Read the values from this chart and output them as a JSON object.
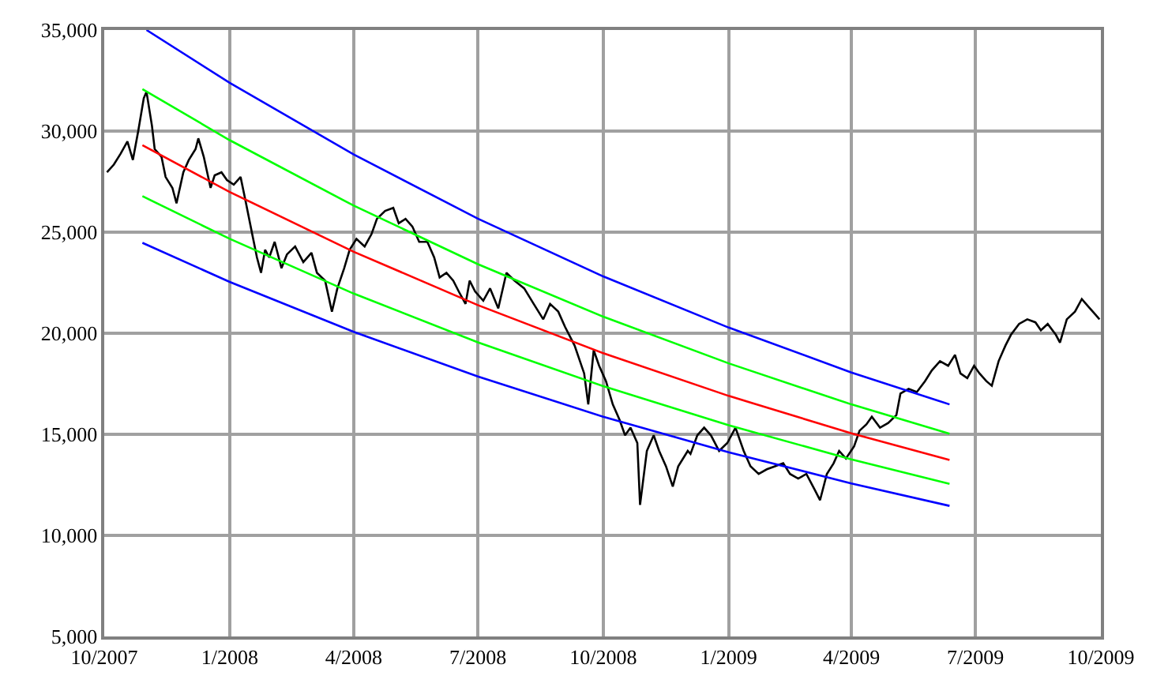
{
  "chart_data": {
    "type": "line",
    "xlim": [
      "2007-10-01",
      "2009-10-01"
    ],
    "xticks": [
      {
        "value": "2007-10-01",
        "label": "10/2007"
      },
      {
        "value": "2008-01-01",
        "label": "1/2008"
      },
      {
        "value": "2008-04-01",
        "label": "4/2008"
      },
      {
        "value": "2008-07-01",
        "label": "7/2008"
      },
      {
        "value": "2008-10-01",
        "label": "10/2008"
      },
      {
        "value": "2009-01-01",
        "label": "1/2009"
      },
      {
        "value": "2009-04-01",
        "label": "4/2009"
      },
      {
        "value": "2009-07-01",
        "label": "7/2009"
      },
      {
        "value": "2009-10-01",
        "label": "10/2009"
      }
    ],
    "ylim": [
      5000,
      35000
    ],
    "yticks": [
      {
        "value": 5000,
        "label": "5,000"
      },
      {
        "value": 10000,
        "label": "10,000"
      },
      {
        "value": 15000,
        "label": "15,000"
      },
      {
        "value": 20000,
        "label": "20,000"
      },
      {
        "value": 25000,
        "label": "25,000"
      },
      {
        "value": 30000,
        "label": "30,000"
      },
      {
        "value": 35000,
        "label": "35,000"
      }
    ],
    "grid": true,
    "marker": "none",
    "line_style": "solid",
    "series": [
      {
        "color": "#000000",
        "x": [
          "2007-10-03",
          "2007-10-08",
          "2007-10-13",
          "2007-10-18",
          "2007-10-22",
          "2007-10-26",
          "2007-10-30",
          "2007-11-01",
          "2007-11-05",
          "2007-11-07",
          "2007-11-12",
          "2007-11-15",
          "2007-11-20",
          "2007-11-23",
          "2007-11-28",
          "2007-12-02",
          "2007-12-07",
          "2007-12-09",
          "2007-12-13",
          "2007-12-18",
          "2007-12-21",
          "2007-12-26",
          "2007-12-30",
          "2008-01-04",
          "2008-01-09",
          "2008-01-13",
          "2008-01-18",
          "2008-01-21",
          "2008-01-24",
          "2008-01-27",
          "2008-01-30",
          "2008-02-03",
          "2008-02-08",
          "2008-02-12",
          "2008-02-18",
          "2008-02-24",
          "2008-03-01",
          "2008-03-05",
          "2008-03-11",
          "2008-03-16",
          "2008-03-20",
          "2008-03-25",
          "2008-03-29",
          "2008-04-03",
          "2008-04-09",
          "2008-04-14",
          "2008-04-18",
          "2008-04-24",
          "2008-04-30",
          "2008-05-04",
          "2008-05-09",
          "2008-05-14",
          "2008-05-19",
          "2008-05-25",
          "2008-05-30",
          "2008-06-03",
          "2008-06-08",
          "2008-06-13",
          "2008-06-17",
          "2008-06-22",
          "2008-06-25",
          "2008-06-29",
          "2008-07-05",
          "2008-07-10",
          "2008-07-16",
          "2008-07-22",
          "2008-07-28",
          "2008-08-04",
          "2008-08-11",
          "2008-08-18",
          "2008-08-23",
          "2008-08-29",
          "2008-09-03",
          "2008-09-10",
          "2008-09-17",
          "2008-09-20",
          "2008-09-24",
          "2008-09-28",
          "2008-10-03",
          "2008-10-08",
          "2008-10-13",
          "2008-10-17",
          "2008-10-21",
          "2008-10-26",
          "2008-10-28",
          "2008-11-02",
          "2008-11-07",
          "2008-11-11",
          "2008-11-16",
          "2008-11-21",
          "2008-11-25",
          "2008-12-02",
          "2008-12-04",
          "2008-12-09",
          "2008-12-14",
          "2008-12-19",
          "2008-12-25",
          "2008-12-31",
          "2009-01-06",
          "2009-01-12",
          "2009-01-17",
          "2009-01-23",
          "2009-01-29",
          "2009-02-04",
          "2009-02-10",
          "2009-02-15",
          "2009-02-21",
          "2009-02-27",
          "2009-03-05",
          "2009-03-09",
          "2009-03-14",
          "2009-03-19",
          "2009-03-23",
          "2009-03-28",
          "2009-04-03",
          "2009-04-07",
          "2009-04-12",
          "2009-04-16",
          "2009-04-22",
          "2009-04-28",
          "2009-05-04",
          "2009-05-07",
          "2009-05-13",
          "2009-05-19",
          "2009-05-25",
          "2009-05-30",
          "2009-06-05",
          "2009-06-11",
          "2009-06-16",
          "2009-06-20",
          "2009-06-25",
          "2009-06-30",
          "2009-07-04",
          "2009-07-09",
          "2009-07-13",
          "2009-07-18",
          "2009-07-23",
          "2009-07-27",
          "2009-08-02",
          "2009-08-08",
          "2009-08-14",
          "2009-08-18",
          "2009-08-23",
          "2009-08-29",
          "2009-09-01",
          "2009-09-06",
          "2009-09-12",
          "2009-09-17",
          "2009-09-22",
          "2009-09-27",
          "2009-09-30"
        ],
        "values": [
          27960,
          28340,
          28880,
          29490,
          28570,
          30030,
          31630,
          31940,
          30260,
          29110,
          28730,
          27730,
          27190,
          26430,
          27960,
          28570,
          29110,
          29640,
          28730,
          27190,
          27810,
          27960,
          27580,
          27350,
          27730,
          26430,
          24750,
          23750,
          22990,
          24130,
          23750,
          24520,
          23220,
          23900,
          24290,
          23520,
          23980,
          22990,
          22600,
          21070,
          22220,
          23220,
          24130,
          24670,
          24290,
          24900,
          25660,
          26050,
          26200,
          25440,
          25660,
          25280,
          24520,
          24520,
          23750,
          22760,
          22990,
          22600,
          22070,
          21450,
          22600,
          22070,
          21610,
          22220,
          21230,
          22990,
          22600,
          22220,
          21450,
          20690,
          21450,
          21070,
          20310,
          19390,
          18010,
          16480,
          19160,
          18390,
          17630,
          16480,
          15710,
          14950,
          15330,
          14570,
          11510,
          14180,
          14950,
          14180,
          13420,
          12420,
          13420,
          14180,
          14030,
          14950,
          15330,
          14950,
          14180,
          14570,
          15330,
          14180,
          13420,
          13040,
          13270,
          13420,
          13570,
          13040,
          12810,
          13040,
          12270,
          11740,
          13040,
          13570,
          14180,
          13800,
          14410,
          15180,
          15490,
          15870,
          15330,
          15560,
          15950,
          17020,
          17250,
          17090,
          17630,
          18160,
          18620,
          18390,
          18930,
          18010,
          17780,
          18390,
          18010,
          17630,
          17400,
          18620,
          19390,
          19920,
          20460,
          20690,
          20540,
          20150,
          20460,
          19920,
          19540,
          20690,
          21070,
          21690,
          21300,
          20920,
          20690
        ]
      },
      {
        "color": "#0000ff",
        "x": [
          "2007-11-01",
          "2008-01-01",
          "2008-04-01",
          "2008-07-01",
          "2008-10-01",
          "2009-01-01",
          "2009-04-01",
          "2009-06-12"
        ],
        "values": [
          35000,
          32390,
          28840,
          25670,
          22810,
          20280,
          18060,
          16480
        ]
      },
      {
        "color": "#00ff00",
        "x": [
          "2007-10-29",
          "2008-01-01",
          "2008-04-01",
          "2008-07-01",
          "2008-10-01",
          "2009-01-01",
          "2009-04-01",
          "2009-06-12"
        ],
        "values": [
          32080,
          29550,
          26310,
          23420,
          20820,
          18510,
          16480,
          15030
        ]
      },
      {
        "color": "#ff0000",
        "x": [
          "2007-10-29",
          "2008-01-01",
          "2008-04-01",
          "2008-07-01",
          "2008-10-01",
          "2009-01-01",
          "2009-04-01",
          "2009-06-12"
        ],
        "values": [
          29300,
          26990,
          24030,
          21390,
          19010,
          16900,
          15050,
          13730
        ]
      },
      {
        "color": "#00ff00",
        "x": [
          "2007-10-29",
          "2008-01-01",
          "2008-04-01",
          "2008-07-01",
          "2008-10-01",
          "2009-01-01",
          "2009-04-01",
          "2009-06-12"
        ],
        "values": [
          26780,
          24670,
          21960,
          19550,
          17380,
          15450,
          13760,
          12550
        ]
      },
      {
        "color": "#0000ff",
        "x": [
          "2007-10-29",
          "2008-01-01",
          "2008-04-01",
          "2008-07-01",
          "2008-10-01",
          "2009-01-01",
          "2009-04-01",
          "2009-06-12"
        ],
        "values": [
          24470,
          22540,
          20070,
          17860,
          15870,
          14110,
          12570,
          11460
        ]
      }
    ]
  }
}
